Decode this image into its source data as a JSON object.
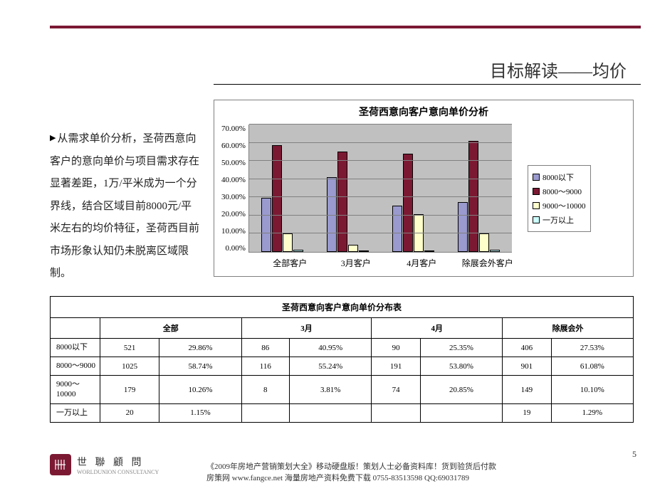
{
  "page": {
    "title": "目标解读——均价",
    "number": "5"
  },
  "paragraph": {
    "bullet": "▶",
    "text": "从需求单价分析，圣荷西意向客户的意向单价与项目需求存在显著差距，1万/平米成为一个分界线，结合区域目前8000元/平米左右的均价特征，圣荷西目前市场形象认知仍未脱离区域限制。"
  },
  "chart": {
    "title": "圣荷西意向客户意向单价分析",
    "ymax": 70,
    "ytick_step": 10,
    "yticks": [
      "70.00%",
      "60.00%",
      "50.00%",
      "40.00%",
      "30.00%",
      "20.00%",
      "10.00%",
      "0.00%"
    ],
    "categories": [
      "全部客户",
      "3月客户",
      "4月客户",
      "除展会外客户"
    ],
    "series": [
      {
        "name": "8000以下",
        "color": "#9a9acf"
      },
      {
        "name": "8000～9000",
        "color": "#7b1933"
      },
      {
        "name": "9000～10000",
        "color": "#ffffcc"
      },
      {
        "name": "一万以上",
        "color": "#ccffff"
      }
    ],
    "values": [
      [
        29.86,
        58.74,
        10.26,
        1.15
      ],
      [
        40.95,
        55.24,
        3.81,
        0.0
      ],
      [
        25.35,
        53.8,
        20.85,
        0.0
      ],
      [
        27.53,
        61.08,
        10.1,
        1.29
      ]
    ],
    "plot_bg": "#c0c0c0",
    "grid_color": "#808080"
  },
  "table": {
    "title": "圣荷西意向客户意向单价分布表",
    "headers": [
      "",
      "全部",
      "3月",
      "4月",
      "除展会外"
    ],
    "rows": [
      {
        "label": "8000以下",
        "cells": [
          "521",
          "29.86%",
          "86",
          "40.95%",
          "90",
          "25.35%",
          "406",
          "27.53%"
        ]
      },
      {
        "label": "8000～9000",
        "cells": [
          "1025",
          "58.74%",
          "116",
          "55.24%",
          "191",
          "53.80%",
          "901",
          "61.08%"
        ]
      },
      {
        "label": "9000～10000",
        "cells": [
          "179",
          "10.26%",
          "8",
          "3.81%",
          "74",
          "20.85%",
          "149",
          "10.10%"
        ]
      },
      {
        "label": "一万以上",
        "cells": [
          "20",
          "1.15%",
          "",
          "",
          "",
          "",
          "19",
          "1.29%"
        ]
      }
    ]
  },
  "footer": {
    "brand_cn": "世 聯 顧 問",
    "brand_en": "WORLDUNION CONSULTANCY",
    "line1": "《2009年房地产营销策划大全》移动硬盘版！策划人士必备资料库！货到验货后付款",
    "line2": "房策网 www.fangce.net  海量房地产资料免费下载   0755-83513598  QQ:69031789"
  }
}
